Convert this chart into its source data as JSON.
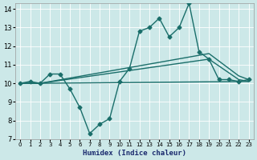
{
  "xlabel": "Humidex (Indice chaleur)",
  "xlim": [
    -0.5,
    23.5
  ],
  "ylim": [
    7,
    14.3
  ],
  "yticks": [
    7,
    8,
    9,
    10,
    11,
    12,
    13,
    14
  ],
  "xticks": [
    0,
    1,
    2,
    3,
    4,
    5,
    6,
    7,
    8,
    9,
    10,
    11,
    12,
    13,
    14,
    15,
    16,
    17,
    18,
    19,
    20,
    21,
    22,
    23
  ],
  "bg_color": "#cce8e8",
  "line_color": "#1a6e6a",
  "line_width": 1.0,
  "marker": "D",
  "marker_size": 2.5,
  "lines": [
    {
      "x": [
        0,
        1,
        2,
        3,
        4,
        5,
        6,
        7,
        8,
        9,
        10,
        11,
        12,
        13,
        14,
        15,
        16,
        17,
        18,
        19,
        20,
        21,
        22,
        23
      ],
      "y": [
        10,
        10.1,
        10,
        10.5,
        10.5,
        9.7,
        8.7,
        7.3,
        7.8,
        8.1,
        10.1,
        10.8,
        12.8,
        13.0,
        13.5,
        12.5,
        13.0,
        14.3,
        11.7,
        11.3,
        10.2,
        10.2,
        10.1,
        10.2
      ],
      "has_markers": true
    },
    {
      "x": [
        0,
        2,
        23
      ],
      "y": [
        10,
        10,
        10.1
      ],
      "has_markers": false
    },
    {
      "x": [
        0,
        2,
        19,
        22,
        23
      ],
      "y": [
        10,
        10,
        11.3,
        10.2,
        10.1
      ],
      "has_markers": false
    },
    {
      "x": [
        0,
        2,
        19,
        22,
        23
      ],
      "y": [
        10,
        10,
        11.6,
        10.4,
        10.2
      ],
      "has_markers": false
    }
  ]
}
